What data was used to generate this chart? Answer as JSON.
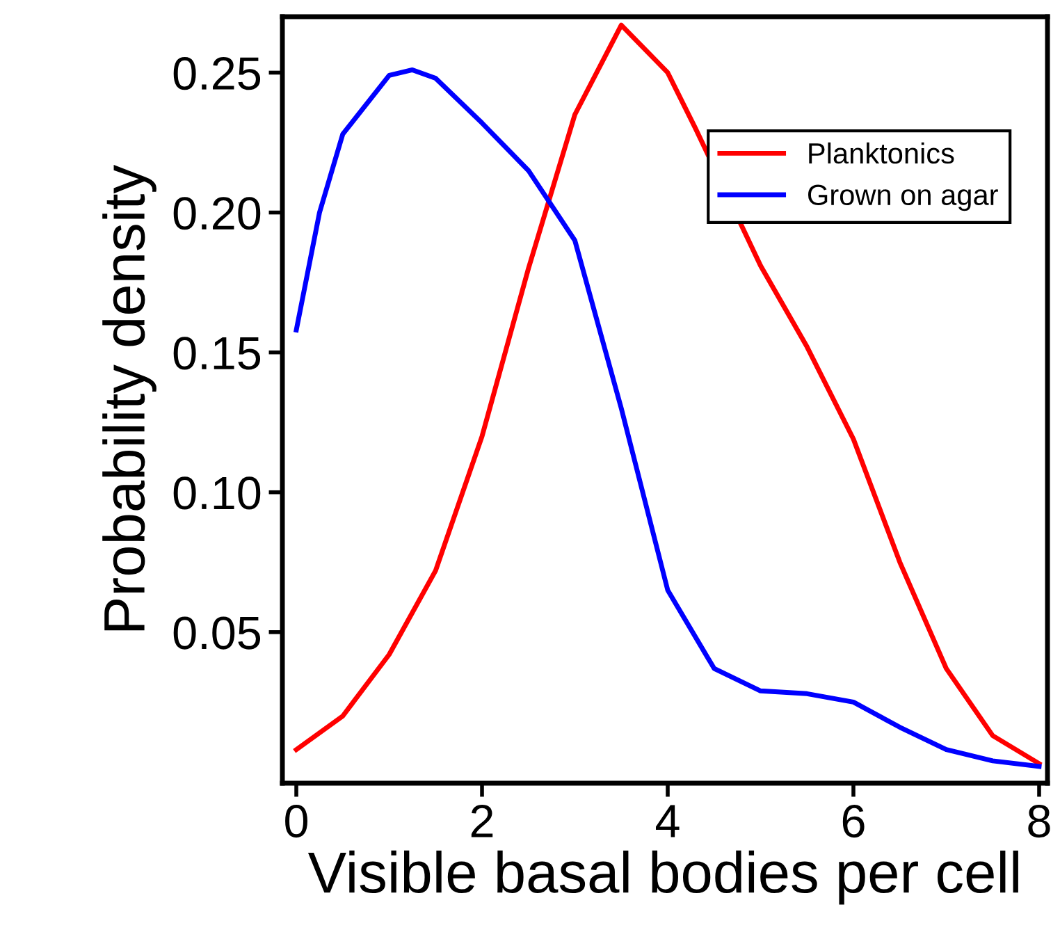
{
  "chart_data": {
    "type": "line",
    "xlabel": "Visible basal bodies per cell",
    "ylabel": "Probability density",
    "xlim": [
      -0.15,
      8.09
    ],
    "ylim": [
      -0.004,
      0.27
    ],
    "xticks": [
      0,
      2,
      4,
      6,
      8
    ],
    "yticks": [
      0.05,
      {
        "value": 0.1,
        "label": "0.10"
      },
      0.15,
      {
        "value": 0.2,
        "label": "0.20"
      },
      0.25
    ],
    "grid": false,
    "legend": "top right",
    "marker": "none",
    "line_style": "solid",
    "series": [
      {
        "name": "Planktonics",
        "color": "#ff0000",
        "x": [
          0,
          0.5,
          1,
          1.5,
          2,
          2.5,
          3,
          3.5,
          4,
          4.3,
          5,
          5.5,
          6,
          6.5,
          7,
          7.5,
          8
        ],
        "values": [
          0.008,
          0.02,
          0.042,
          0.072,
          0.12,
          0.18,
          0.235,
          0.267,
          0.25,
          0.23,
          0.181,
          0.152,
          0.119,
          0.075,
          0.037,
          0.013,
          0.003
        ]
      },
      {
        "name": "Grown on agar",
        "color": "#0000ff",
        "x": [
          0,
          0.25,
          0.5,
          1,
          1.25,
          1.5,
          2,
          2.5,
          3,
          3.5,
          4,
          4.5,
          5,
          5.5,
          6,
          6.5,
          7,
          7.5,
          8
        ],
        "values": [
          0.158,
          0.2,
          0.228,
          0.249,
          0.251,
          0.248,
          0.232,
          0.215,
          0.19,
          0.13,
          0.065,
          0.037,
          0.029,
          0.028,
          0.025,
          0.016,
          0.008,
          0.004,
          0.002
        ]
      }
    ]
  }
}
